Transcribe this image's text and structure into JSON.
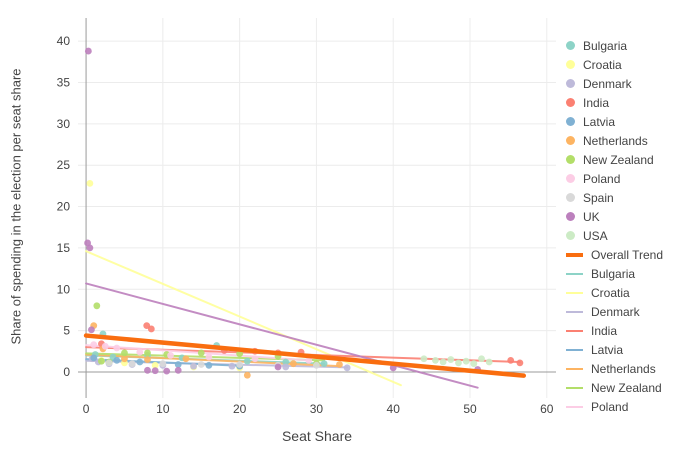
{
  "chart_data": {
    "type": "scatter",
    "title": "",
    "xlabel": "Seat Share",
    "ylabel": "Share of spending in the election per seat share",
    "xlim": [
      -1.05,
      61.2
    ],
    "ylim": [
      -3.15,
      42.8
    ],
    "xticks": [
      0,
      10,
      20,
      30,
      40,
      50,
      60
    ],
    "yticks": [
      0,
      5,
      10,
      15,
      20,
      25,
      30,
      35,
      40
    ],
    "grid": true,
    "legend_position": "right",
    "series": [
      {
        "name": "Bulgaria",
        "color": "#8dd3c7",
        "points": [
          [
            1.2,
            2.1
          ],
          [
            2.2,
            4.6
          ],
          [
            3.5,
            1.8
          ],
          [
            8,
            2.0
          ],
          [
            12.5,
            1.7
          ],
          [
            17,
            3.2
          ],
          [
            21,
            1.3
          ],
          [
            26,
            1.2
          ],
          [
            31,
            1.0
          ]
        ]
      },
      {
        "name": "Croatia",
        "color": "#ffff99",
        "points": [
          [
            0.5,
            22.8
          ],
          [
            2,
            1.4
          ],
          [
            5,
            1.1
          ],
          [
            9,
            0.8
          ],
          [
            14,
            0.6
          ],
          [
            20,
            0.5
          ]
        ]
      },
      {
        "name": "Denmark",
        "color": "#bebada",
        "points": [
          [
            0.8,
            1.6
          ],
          [
            1.6,
            1.2
          ],
          [
            3,
            1.0
          ],
          [
            6,
            0.9
          ],
          [
            10,
            0.8
          ],
          [
            14,
            0.7
          ],
          [
            19,
            0.7
          ],
          [
            26,
            0.6
          ],
          [
            34,
            0.5
          ]
        ]
      },
      {
        "name": "India",
        "color": "#fb8072",
        "points": [
          [
            2,
            3.4
          ],
          [
            7.9,
            5.6
          ],
          [
            8.5,
            5.2
          ],
          [
            18,
            2.6
          ],
          [
            22,
            2.5
          ],
          [
            25,
            2.3
          ],
          [
            28,
            2.4
          ],
          [
            55.3,
            1.4
          ],
          [
            56.5,
            1.1
          ]
        ]
      },
      {
        "name": "Latvia",
        "color": "#80b1d3",
        "points": [
          [
            1,
            1.7
          ],
          [
            4,
            1.4
          ],
          [
            7,
            1.2
          ],
          [
            12,
            0.9
          ],
          [
            16,
            0.8
          ],
          [
            20,
            0.7
          ]
        ]
      },
      {
        "name": "Netherlands",
        "color": "#fdb462",
        "points": [
          [
            1,
            5.6
          ],
          [
            2.2,
            2.8
          ],
          [
            5,
            1.6
          ],
          [
            8,
            1.5
          ],
          [
            13,
            1.6
          ],
          [
            21,
            -0.4
          ],
          [
            27,
            1.0
          ],
          [
            33,
            0.9
          ]
        ]
      },
      {
        "name": "New Zealand",
        "color": "#b3de69",
        "points": [
          [
            1.4,
            8.0
          ],
          [
            2,
            1.3
          ],
          [
            3,
            1.2
          ],
          [
            5,
            2.3
          ],
          [
            8,
            2.3
          ],
          [
            10.5,
            2.1
          ],
          [
            15,
            2.3
          ],
          [
            20,
            2.2
          ],
          [
            25,
            1.9
          ],
          [
            30,
            1.0
          ]
        ]
      },
      {
        "name": "Poland",
        "color": "#fccde5",
        "points": [
          [
            1,
            3.3
          ],
          [
            2.5,
            3.1
          ],
          [
            4,
            2.9
          ],
          [
            7,
            2.4
          ],
          [
            11,
            2.0
          ],
          [
            16,
            1.8
          ],
          [
            22,
            1.6
          ],
          [
            29,
            1.4
          ]
        ]
      },
      {
        "name": "Spain",
        "color": "#d9d9d9",
        "points": [
          [
            3,
            1.1
          ],
          [
            6,
            1.0
          ],
          [
            10,
            1.0
          ],
          [
            15,
            0.9
          ],
          [
            20,
            0.9
          ],
          [
            25,
            0.8
          ],
          [
            30,
            0.8
          ]
        ]
      },
      {
        "name": "UK",
        "color": "#bc80bd",
        "points": [
          [
            0.3,
            38.8
          ],
          [
            0.2,
            15.6
          ],
          [
            0.5,
            15.0
          ],
          [
            0.7,
            5.1
          ],
          [
            8,
            0.2
          ],
          [
            9,
            0.15
          ],
          [
            10.5,
            0.1
          ],
          [
            12,
            0.2
          ],
          [
            25,
            0.6
          ],
          [
            40,
            0.5
          ],
          [
            51,
            0.3
          ]
        ]
      },
      {
        "name": "USA",
        "color": "#ccebc5",
        "points": [
          [
            44,
            1.6
          ],
          [
            45.5,
            1.4
          ],
          [
            46.5,
            1.2
          ],
          [
            47.5,
            1.5
          ],
          [
            48.5,
            1.1
          ],
          [
            49.5,
            1.3
          ],
          [
            50.5,
            1.0
          ],
          [
            51.5,
            1.6
          ],
          [
            52.5,
            1.2
          ]
        ]
      }
    ],
    "trend_lines": [
      {
        "name": "Bulgaria",
        "color": "#8dd3c7",
        "width": 2,
        "x0": 0,
        "y0": 2.0,
        "x1": 31,
        "y1": 1.0
      },
      {
        "name": "Croatia",
        "color": "#ffff99",
        "width": 2,
        "x0": 0,
        "y0": 14.6,
        "x1": 41,
        "y1": -1.6
      },
      {
        "name": "Denmark",
        "color": "#bebada",
        "width": 2,
        "x0": 0,
        "y0": 1.35,
        "x1": 34,
        "y1": 0.55
      },
      {
        "name": "India",
        "color": "#fb8072",
        "width": 2,
        "x0": 0,
        "y0": 3.0,
        "x1": 56.5,
        "y1": 1.2
      },
      {
        "name": "Latvia",
        "color": "#80b1d3",
        "width": 2,
        "x0": 0,
        "y0": 1.55,
        "x1": 20,
        "y1": 0.75
      },
      {
        "name": "Netherlands",
        "color": "#fdb462",
        "width": 2,
        "x0": 0,
        "y0": 2.1,
        "x1": 33,
        "y1": 0.7
      },
      {
        "name": "New Zealand",
        "color": "#b3de69",
        "width": 2,
        "x0": 0,
        "y0": 2.25,
        "x1": 31,
        "y1": 1.4
      },
      {
        "name": "Poland",
        "color": "#fccde5",
        "width": 2,
        "x0": 0,
        "y0": 3.25,
        "x1": 29,
        "y1": 1.4
      },
      {
        "name": "UK",
        "color": "#bc80bd",
        "width": 2,
        "x0": 0,
        "y0": 10.7,
        "x1": 51,
        "y1": -1.9
      },
      {
        "name": "Overall Trend",
        "color": "#f96d0f",
        "width": 4.5,
        "x0": 0,
        "y0": 4.4,
        "x1": 57,
        "y1": -0.45
      }
    ],
    "legend": {
      "items": [
        {
          "label": "Bulgaria",
          "color": "#8dd3c7",
          "kind": "marker"
        },
        {
          "label": "Croatia",
          "color": "#ffff99",
          "kind": "marker"
        },
        {
          "label": "Denmark",
          "color": "#bebada",
          "kind": "marker"
        },
        {
          "label": "India",
          "color": "#fb8072",
          "kind": "marker"
        },
        {
          "label": "Latvia",
          "color": "#80b1d3",
          "kind": "marker"
        },
        {
          "label": "Netherlands",
          "color": "#fdb462",
          "kind": "marker"
        },
        {
          "label": "New Zealand",
          "color": "#b3de69",
          "kind": "marker"
        },
        {
          "label": "Poland",
          "color": "#fccde5",
          "kind": "marker"
        },
        {
          "label": "Spain",
          "color": "#d9d9d9",
          "kind": "marker"
        },
        {
          "label": "UK",
          "color": "#bc80bd",
          "kind": "marker"
        },
        {
          "label": "USA",
          "color": "#ccebc5",
          "kind": "marker"
        },
        {
          "label": "Overall Trend",
          "color": "#f96d0f",
          "kind": "line",
          "thick": true
        },
        {
          "label": "Bulgaria",
          "color": "#8dd3c7",
          "kind": "line"
        },
        {
          "label": "Croatia",
          "color": "#ffff99",
          "kind": "line"
        },
        {
          "label": "Denmark",
          "color": "#bebada",
          "kind": "line"
        },
        {
          "label": "India",
          "color": "#fb8072",
          "kind": "line"
        },
        {
          "label": "Latvia",
          "color": "#80b1d3",
          "kind": "line"
        },
        {
          "label": "Netherlands",
          "color": "#fdb462",
          "kind": "line"
        },
        {
          "label": "New Zealand",
          "color": "#b3de69",
          "kind": "line"
        },
        {
          "label": "Poland",
          "color": "#fccde5",
          "kind": "line"
        }
      ]
    }
  },
  "colors": {
    "background": "#ffffff",
    "grid": "#ececec",
    "zero_line": "#9b9b9b",
    "text": "#444444"
  }
}
